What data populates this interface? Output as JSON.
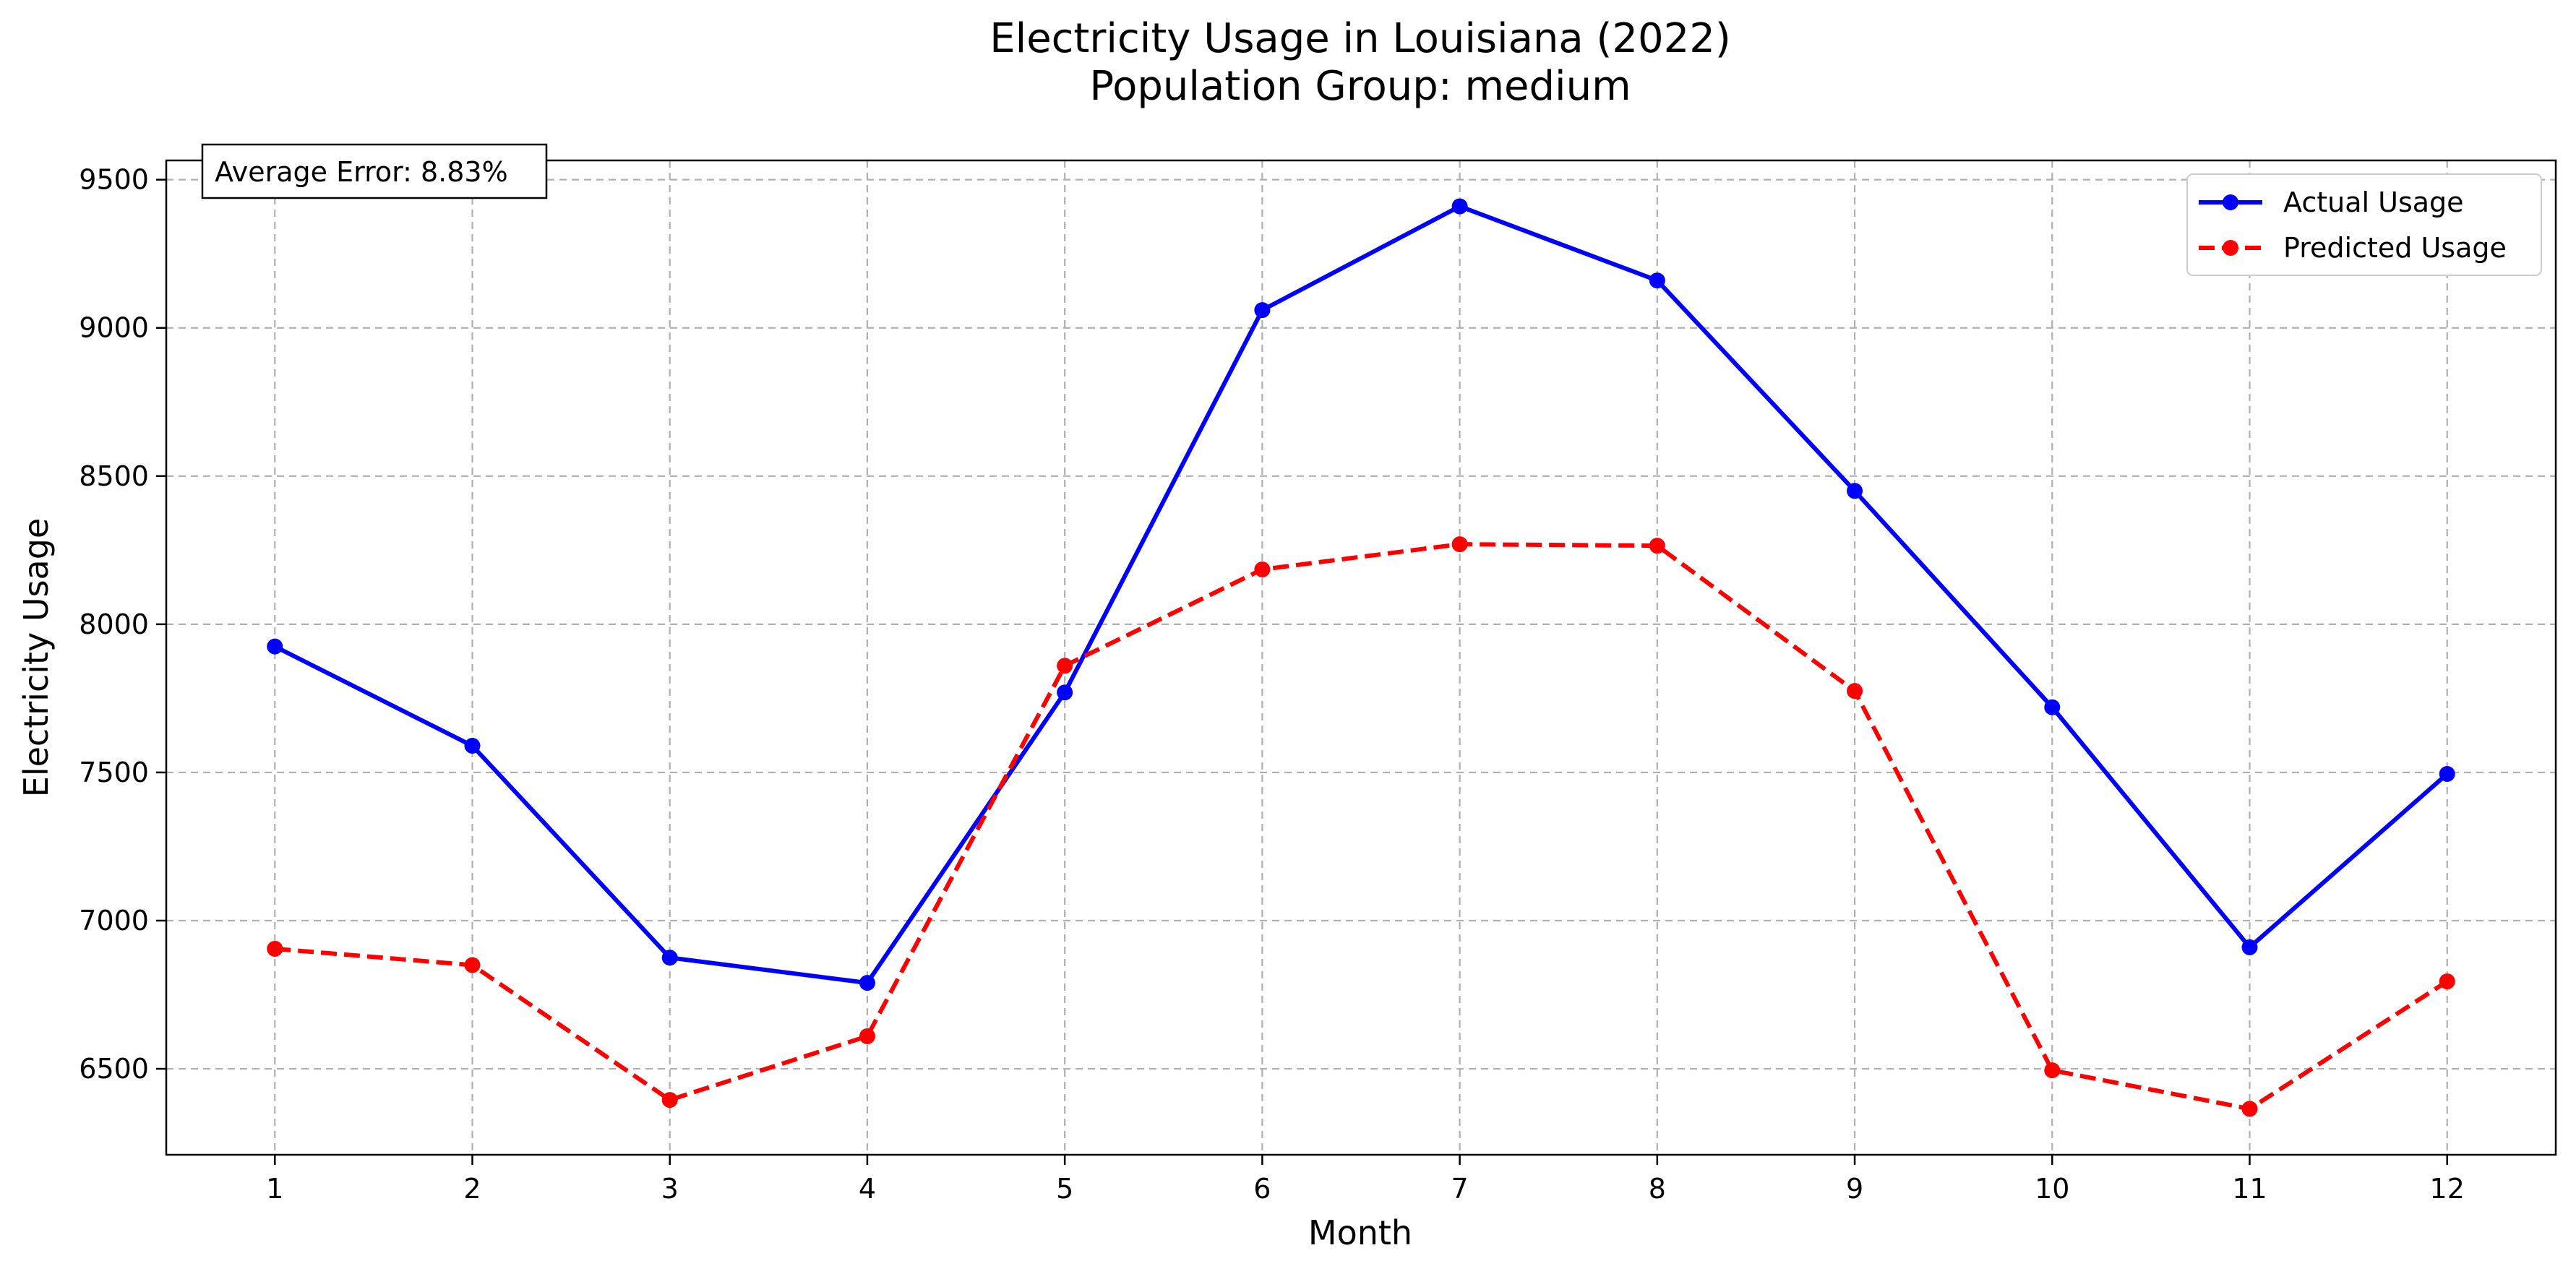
{
  "chart_data": {
    "type": "line",
    "title": "Electricity Usage in Louisiana (2022)",
    "subtitle": "Population Group: medium",
    "xlabel": "Month",
    "ylabel": "Electricity Usage",
    "x": [
      1,
      2,
      3,
      4,
      5,
      6,
      7,
      8,
      9,
      10,
      11,
      12
    ],
    "x_ticks": [
      "1",
      "2",
      "3",
      "4",
      "5",
      "6",
      "7",
      "8",
      "9",
      "10",
      "11",
      "12"
    ],
    "xlim": [
      0.45,
      12.55
    ],
    "ylim": [
      6210,
      9565
    ],
    "y_ticks": [
      6500,
      7000,
      7500,
      8000,
      8500,
      9000,
      9500
    ],
    "grid": true,
    "legend_position": "top-right",
    "annotation": "Average Error: 8.83%",
    "series": [
      {
        "name": "Actual Usage",
        "color": "#0000ff",
        "line_style": "solid",
        "marker": "circle",
        "values": [
          7925,
          7590,
          6875,
          6790,
          7770,
          9060,
          9410,
          9160,
          8450,
          7720,
          6910,
          7495
        ]
      },
      {
        "name": "Predicted Usage",
        "color": "#ff0000",
        "line_style": "dashed",
        "marker": "circle",
        "values": [
          6905,
          6850,
          6395,
          6610,
          7860,
          8185,
          8270,
          8265,
          7775,
          6495,
          6365,
          6795
        ]
      }
    ]
  }
}
